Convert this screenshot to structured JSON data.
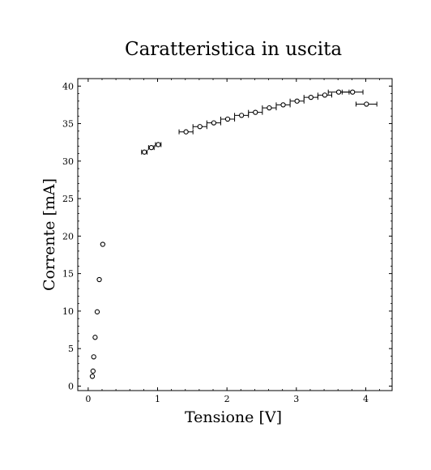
{
  "chart_data": {
    "type": "scatter",
    "title": "Caratteristica in uscita",
    "xlabel": "Tensione [V]",
    "ylabel": "Corrente [mA]",
    "xlim": [
      -0.15,
      4.38
    ],
    "ylim": [
      -0.6,
      41.0
    ],
    "x_ticks": [
      0,
      1,
      2,
      3,
      4
    ],
    "y_ticks": [
      0,
      5,
      10,
      15,
      20,
      25,
      30,
      35,
      40
    ],
    "grid": false,
    "legend": "none",
    "marker": "open-circle",
    "series": [
      {
        "points": [
          {
            "x": 0.06,
            "y": 1.3,
            "xerr": 0.0
          },
          {
            "x": 0.07,
            "y": 2.0,
            "xerr": 0.0
          },
          {
            "x": 0.08,
            "y": 3.9,
            "xerr": 0.0
          },
          {
            "x": 0.1,
            "y": 6.5,
            "xerr": 0.0
          },
          {
            "x": 0.13,
            "y": 9.9,
            "xerr": 0.0
          },
          {
            "x": 0.16,
            "y": 14.2,
            "xerr": 0.0
          },
          {
            "x": 0.21,
            "y": 18.9,
            "xerr": 0.0
          },
          {
            "x": 0.81,
            "y": 31.2,
            "xerr": 0.04
          },
          {
            "x": 0.91,
            "y": 31.8,
            "xerr": 0.04
          },
          {
            "x": 1.01,
            "y": 32.2,
            "xerr": 0.04
          },
          {
            "x": 1.41,
            "y": 33.9,
            "xerr": 0.1
          },
          {
            "x": 1.61,
            "y": 34.6,
            "xerr": 0.1
          },
          {
            "x": 1.81,
            "y": 35.1,
            "xerr": 0.1
          },
          {
            "x": 2.01,
            "y": 35.6,
            "xerr": 0.1
          },
          {
            "x": 2.21,
            "y": 36.1,
            "xerr": 0.1
          },
          {
            "x": 2.41,
            "y": 36.5,
            "xerr": 0.1
          },
          {
            "x": 2.61,
            "y": 37.1,
            "xerr": 0.1
          },
          {
            "x": 2.81,
            "y": 37.5,
            "xerr": 0.1
          },
          {
            "x": 3.01,
            "y": 38.0,
            "xerr": 0.1
          },
          {
            "x": 3.21,
            "y": 38.5,
            "xerr": 0.1
          },
          {
            "x": 3.41,
            "y": 38.8,
            "xerr": 0.1
          },
          {
            "x": 3.61,
            "y": 39.2,
            "xerr": 0.15
          },
          {
            "x": 3.81,
            "y": 39.2,
            "xerr": 0.15
          },
          {
            "x": 4.01,
            "y": 37.6,
            "xerr": 0.15
          }
        ]
      }
    ]
  }
}
